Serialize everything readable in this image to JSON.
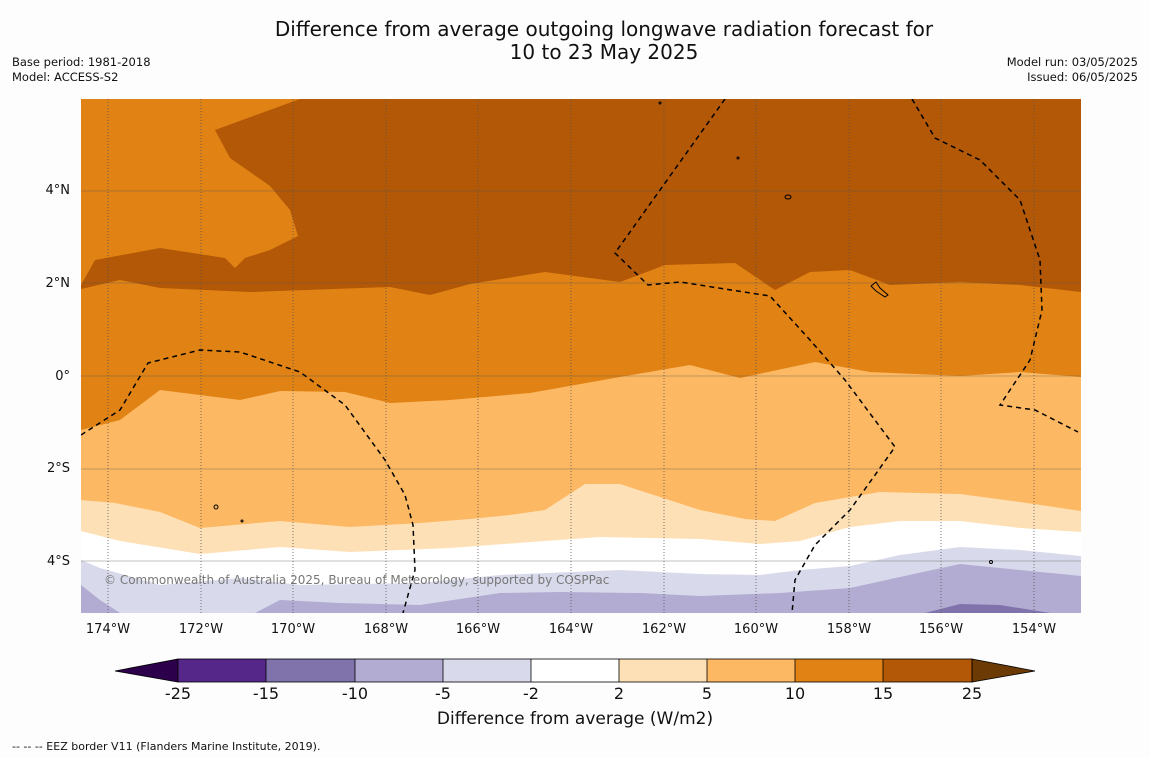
{
  "header": {
    "title_line1": "Difference from average outgoing longwave radiation forecast for",
    "title_line2": "10 to 23 May 2025",
    "base_period": "Base period: 1981-2018",
    "model": "Model: ACCESS-S2",
    "model_run": "Model run: 03/05/2025",
    "issued": "Issued: 06/05/2025"
  },
  "map": {
    "copyright": "© Commonwealth of Australia 2025, Bureau of Meteorology, supported by COSPPac",
    "lat_labels": [
      "4°N",
      "2°N",
      "0°",
      "2°S",
      "4°S"
    ],
    "lon_labels": [
      "174°W",
      "172°W",
      "170°W",
      "168°W",
      "166°W",
      "164°W",
      "162°W",
      "160°W",
      "158°W",
      "156°W",
      "154°W"
    ],
    "colors": {
      "gt25": "#6b3a05",
      "15_25": "#b35806",
      "10_15": "#e08214",
      "5_10": "#fdb863",
      "2_5": "#fee0b6",
      "m2_2": "#ffffff",
      "m5_m2": "#d8daeb",
      "m10_m5": "#b2abd2",
      "m15_m10": "#8073ac",
      "m25_m15": "#542788",
      "lt_m25": "#2d004b"
    }
  },
  "colorbar": {
    "ticks": [
      "-25",
      "-15",
      "-10",
      "-5",
      "-2",
      "2",
      "5",
      "10",
      "15",
      "25"
    ],
    "title": "Difference from average (W/m2)"
  },
  "footer": "--  --  -- EEZ border V11 (Flanders Marine Institute, 2019)."
}
